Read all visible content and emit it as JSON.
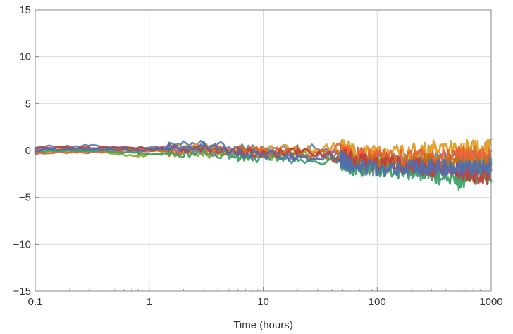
{
  "chart_data": {
    "type": "line",
    "xlabel": "Time (hours)",
    "ylabel": "",
    "x_scale": "log",
    "xlim": [
      0.1,
      1000
    ],
    "ylim": [
      -15,
      15
    ],
    "x_ticks": [
      0.1,
      1,
      10,
      100,
      1000
    ],
    "x_tick_labels": [
      "0.1",
      "1",
      "10",
      "100",
      "1000"
    ],
    "y_ticks": [
      15,
      10,
      5,
      0,
      -5,
      -10,
      -15
    ],
    "y_tick_labels": [
      "15",
      "10",
      "5",
      "0",
      "−5",
      "−10",
      "−15"
    ],
    "grid": true,
    "legend": "none",
    "series": [
      {
        "color": "#5e81b5",
        "values": [
          [
            0.1,
            0.4
          ],
          [
            0.3,
            0.5
          ],
          [
            0.8,
            0.3
          ],
          [
            1.5,
            0.4
          ],
          [
            3,
            0.7
          ],
          [
            6,
            0.2
          ],
          [
            10,
            0.1
          ],
          [
            20,
            0.3
          ],
          [
            48,
            0.0
          ],
          [
            60,
            -0.8
          ],
          [
            100,
            -1.2
          ],
          [
            200,
            -1.0
          ],
          [
            300,
            -0.9
          ],
          [
            500,
            -1.0
          ],
          [
            700,
            -0.7
          ],
          [
            1000,
            -0.6
          ]
        ]
      },
      {
        "color": "#e19c24",
        "values": [
          [
            0.1,
            0.1
          ],
          [
            0.3,
            0.2
          ],
          [
            0.8,
            0.0
          ],
          [
            1.5,
            0.2
          ],
          [
            3,
            0.3
          ],
          [
            6,
            0.0
          ],
          [
            10,
            0.1
          ],
          [
            20,
            0.2
          ],
          [
            48,
            0.3
          ],
          [
            60,
            0.0
          ],
          [
            100,
            -0.3
          ],
          [
            200,
            0.0
          ],
          [
            300,
            0.2
          ],
          [
            500,
            0.1
          ],
          [
            700,
            0.3
          ],
          [
            1000,
            0.4
          ]
        ]
      },
      {
        "color": "#8fb032",
        "values": [
          [
            0.1,
            -0.2
          ],
          [
            0.3,
            -0.1
          ],
          [
            0.8,
            -0.6
          ],
          [
            1.5,
            -0.2
          ],
          [
            3,
            -0.3
          ],
          [
            6,
            -0.5
          ],
          [
            10,
            -0.6
          ],
          [
            20,
            -0.4
          ],
          [
            48,
            -0.7
          ],
          [
            60,
            -1.3
          ],
          [
            100,
            -1.6
          ],
          [
            200,
            -1.5
          ],
          [
            300,
            -1.4
          ],
          [
            500,
            -1.8
          ],
          [
            700,
            -1.6
          ],
          [
            1000,
            -1.4
          ]
        ]
      },
      {
        "color": "#eb6235",
        "values": [
          [
            0.1,
            -0.3
          ],
          [
            0.3,
            -0.2
          ],
          [
            0.8,
            -0.1
          ],
          [
            1.5,
            0.1
          ],
          [
            3,
            0.0
          ],
          [
            6,
            0.2
          ],
          [
            10,
            -0.1
          ],
          [
            20,
            0.0
          ],
          [
            48,
            -0.2
          ],
          [
            60,
            -0.5
          ],
          [
            100,
            -0.8
          ],
          [
            200,
            -0.6
          ],
          [
            300,
            -0.8
          ],
          [
            500,
            -0.5
          ],
          [
            700,
            -0.4
          ],
          [
            1000,
            -0.2
          ]
        ]
      },
      {
        "color": "#8778b3",
        "values": [
          [
            0.1,
            0.2
          ],
          [
            0.3,
            0.0
          ],
          [
            0.8,
            0.1
          ],
          [
            1.5,
            0.0
          ],
          [
            3,
            -0.1
          ],
          [
            6,
            -0.3
          ],
          [
            10,
            -0.4
          ],
          [
            20,
            -0.6
          ],
          [
            48,
            -1.0
          ],
          [
            60,
            -1.5
          ],
          [
            100,
            -1.9
          ],
          [
            200,
            -2.0
          ],
          [
            300,
            -2.1
          ],
          [
            500,
            -2.4
          ],
          [
            700,
            -2.2
          ],
          [
            1000,
            -2.0
          ]
        ]
      },
      {
        "color": "#c56e1a",
        "values": [
          [
            0.1,
            0.0
          ],
          [
            0.3,
            0.1
          ],
          [
            0.8,
            0.2
          ],
          [
            1.5,
            -0.1
          ],
          [
            3,
            0.1
          ],
          [
            6,
            0.0
          ],
          [
            10,
            -0.2
          ],
          [
            20,
            -0.3
          ],
          [
            48,
            -0.5
          ],
          [
            60,
            -0.9
          ],
          [
            100,
            -1.1
          ],
          [
            200,
            -1.2
          ],
          [
            300,
            -1.0
          ],
          [
            500,
            -1.3
          ],
          [
            700,
            -1.5
          ],
          [
            1000,
            -1.1
          ]
        ]
      },
      {
        "color": "#3ba364",
        "values": [
          [
            0.1,
            -0.1
          ],
          [
            0.3,
            0.0
          ],
          [
            0.8,
            -0.3
          ],
          [
            1.5,
            -0.4
          ],
          [
            3,
            -0.2
          ],
          [
            6,
            -0.7
          ],
          [
            10,
            -0.8
          ],
          [
            20,
            -0.9
          ],
          [
            48,
            -1.2
          ],
          [
            60,
            -1.8
          ],
          [
            100,
            -2.0
          ],
          [
            200,
            -2.3
          ],
          [
            300,
            -2.5
          ],
          [
            500,
            -3.4
          ],
          [
            700,
            -2.9
          ],
          [
            1000,
            -2.6
          ]
        ]
      },
      {
        "color": "#c1403b",
        "values": [
          [
            0.1,
            0.3
          ],
          [
            0.3,
            0.3
          ],
          [
            0.8,
            0.2
          ],
          [
            1.5,
            0.3
          ],
          [
            3,
            0.1
          ],
          [
            6,
            -0.1
          ],
          [
            10,
            -0.3
          ],
          [
            20,
            -0.2
          ],
          [
            48,
            -0.6
          ],
          [
            60,
            -1.0
          ],
          [
            100,
            -1.4
          ],
          [
            200,
            -1.6
          ],
          [
            300,
            -1.9
          ],
          [
            500,
            -2.2
          ],
          [
            700,
            -2.6
          ],
          [
            1000,
            -2.8
          ]
        ]
      },
      {
        "color": "#4f6fb0",
        "values": [
          [
            0.1,
            0.0
          ],
          [
            0.3,
            0.2
          ],
          [
            0.8,
            0.0
          ],
          [
            1.5,
            0.2
          ],
          [
            3,
            0.5
          ],
          [
            6,
            -0.2
          ],
          [
            10,
            -0.5
          ],
          [
            20,
            -0.7
          ],
          [
            48,
            -0.9
          ],
          [
            60,
            -1.6
          ],
          [
            100,
            -1.8
          ],
          [
            200,
            -1.9
          ],
          [
            300,
            -1.7
          ],
          [
            500,
            -2.0
          ],
          [
            700,
            -1.9
          ],
          [
            1000,
            -1.7
          ]
        ]
      }
    ]
  }
}
